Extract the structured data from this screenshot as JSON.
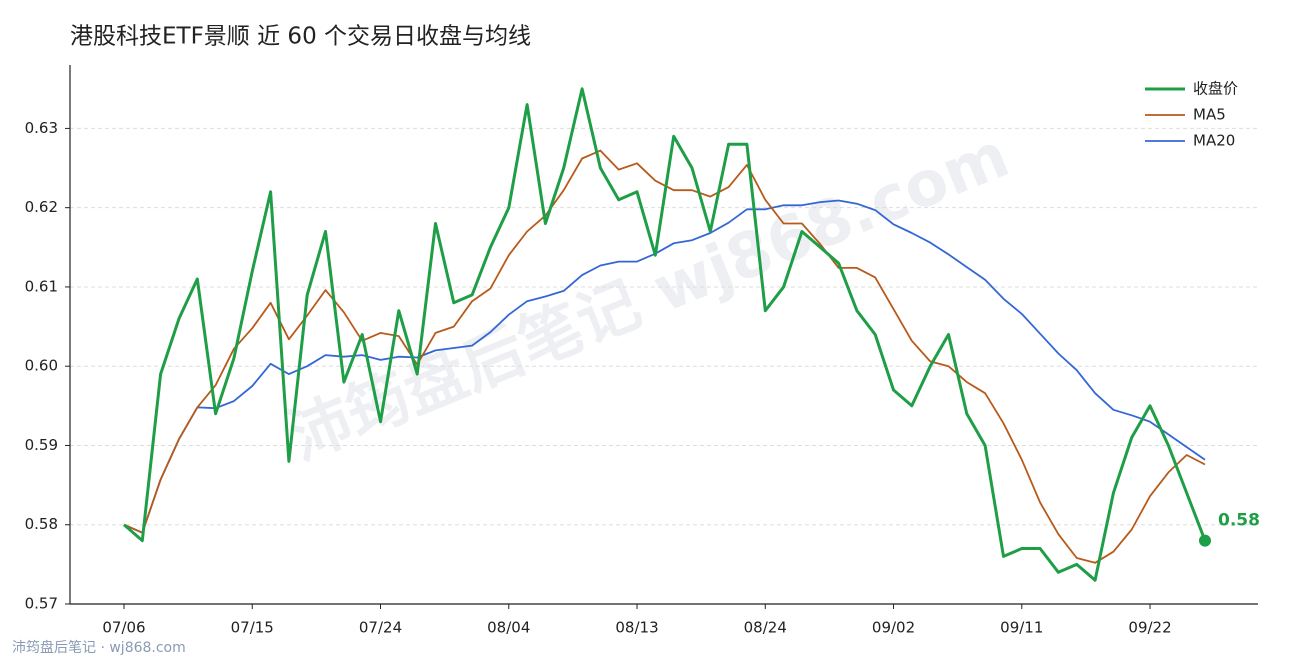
{
  "chart_data": {
    "type": "line",
    "title": "港股科技ETF景顺 近 60 个交易日收盘与均线",
    "footer": "沛筠盘后笔记 · wj868.com",
    "watermark": "沛筠盘后笔记 wj868.com",
    "categories": [
      "07/06",
      null,
      null,
      null,
      null,
      null,
      null,
      "07/15",
      null,
      null,
      null,
      null,
      null,
      null,
      "07/24",
      null,
      null,
      null,
      null,
      null,
      null,
      "08/04",
      null,
      null,
      null,
      null,
      null,
      null,
      "08/13",
      null,
      null,
      null,
      null,
      null,
      null,
      "08/24",
      null,
      null,
      null,
      null,
      null,
      null,
      "09/02",
      null,
      null,
      null,
      null,
      null,
      null,
      "09/11",
      null,
      null,
      null,
      null,
      null,
      null,
      "09/22",
      null,
      null,
      null
    ],
    "series": [
      {
        "name": "收盘价",
        "color": "#1e9e46",
        "width": 3,
        "values": [
          0.58,
          0.578,
          0.599,
          0.606,
          0.611,
          0.594,
          0.601,
          0.612,
          0.622,
          0.588,
          0.609,
          0.617,
          0.598,
          0.604,
          0.593,
          0.607,
          0.599,
          0.618,
          0.608,
          0.609,
          0.615,
          0.62,
          0.633,
          0.618,
          0.625,
          0.635,
          0.625,
          0.621,
          0.622,
          0.614,
          0.629,
          0.625,
          0.617,
          0.628,
          0.628,
          0.607,
          0.61,
          0.617,
          0.615,
          0.613,
          0.607,
          0.604,
          0.597,
          0.595,
          0.6,
          0.604,
          0.594,
          0.59,
          0.576,
          0.577,
          0.577,
          0.574,
          0.575,
          0.573,
          0.584,
          0.591,
          0.595,
          0.59,
          0.584,
          0.578
        ],
        "value_labels": [
          null,
          null,
          null,
          null,
          null,
          null,
          null,
          null,
          null,
          null,
          null,
          null,
          null,
          null,
          null,
          null,
          null,
          null,
          null,
          null,
          null,
          null,
          null,
          null,
          null,
          null,
          null,
          null,
          null,
          null,
          null,
          null,
          null,
          null,
          null,
          null,
          null,
          null,
          null,
          null,
          null,
          null,
          null,
          null,
          null,
          null,
          null,
          null,
          null,
          null,
          null,
          null,
          null,
          null,
          null,
          null,
          null,
          null,
          null,
          "0.58"
        ]
      },
      {
        "name": "MA5",
        "color": "#b85a1a",
        "width": 1.8,
        "values": [
          0.58,
          0.579,
          0.5857,
          0.5908,
          0.5948,
          0.5976,
          0.6022,
          0.6048,
          0.608,
          0.6034,
          0.6064,
          0.6096,
          0.6068,
          0.6032,
          0.6042,
          0.6038,
          0.6002,
          0.6042,
          0.605,
          0.6082,
          0.6098,
          0.614,
          0.617,
          0.619,
          0.6222,
          0.6262,
          0.6272,
          0.6248,
          0.6256,
          0.6234,
          0.6222,
          0.6222,
          0.6214,
          0.6226,
          0.6254,
          0.621,
          0.618,
          0.618,
          0.6154,
          0.6124,
          0.6124,
          0.6112,
          0.6072,
          0.6032,
          0.6006,
          0.6,
          0.598,
          0.5966,
          0.5928,
          0.5882,
          0.5828,
          0.5788,
          0.5758,
          0.5752,
          0.5766,
          0.5794,
          0.5836,
          0.5866,
          0.5888,
          0.5876
        ]
      },
      {
        "name": "MA20",
        "color": "#3467d6",
        "width": 1.8,
        "values": [
          0.58,
          0.579,
          0.5857,
          0.5908,
          0.5948,
          0.5947,
          0.5956,
          0.5975,
          0.6003,
          0.599,
          0.6,
          0.6014,
          0.6012,
          0.6014,
          0.6008,
          0.6012,
          0.6011,
          0.602,
          0.6023,
          0.6026,
          0.6043,
          0.6065,
          0.6082,
          0.6088,
          0.6095,
          0.6115,
          0.6127,
          0.6132,
          0.6132,
          0.6142,
          0.6155,
          0.6159,
          0.6168,
          0.6181,
          0.6198,
          0.6198,
          0.6203,
          0.6203,
          0.6207,
          0.6209,
          0.6205,
          0.6197,
          0.6179,
          0.6168,
          0.6156,
          0.6141,
          0.6125,
          0.6109,
          0.6085,
          0.6066,
          0.6041,
          0.6016,
          0.5995,
          0.5966,
          0.5945,
          0.5938,
          0.593,
          0.5914,
          0.5898,
          0.5882
        ]
      }
    ],
    "ylim": [
      0.57,
      0.638
    ],
    "yticks": [
      0.57,
      0.58,
      0.59,
      {
        "value": 0.6,
        "label": "0.60"
      },
      0.61,
      0.62,
      0.63
    ],
    "grid": true,
    "legend": "upper-right"
  }
}
